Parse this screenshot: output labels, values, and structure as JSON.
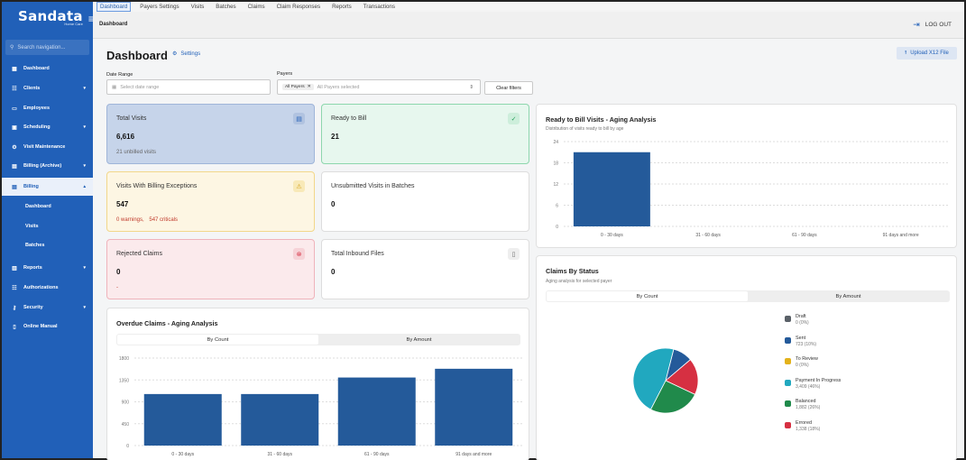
{
  "app": {
    "logo": "Sandata",
    "logo_sub": "Home Care"
  },
  "sidebar": {
    "search_placeholder": "Search navigation...",
    "items": [
      {
        "label": "Dashboard",
        "icon": "grid-icon",
        "chevron": ""
      },
      {
        "label": "Clients",
        "icon": "people-icon",
        "chevron": "▾"
      },
      {
        "label": "Employees",
        "icon": "id-card-icon",
        "chevron": ""
      },
      {
        "label": "Scheduling",
        "icon": "calendar-icon",
        "chevron": "▾"
      },
      {
        "label": "Visit Maintenance",
        "icon": "gear-icon",
        "chevron": ""
      },
      {
        "label": "Billing (Archive)",
        "icon": "billing-icon",
        "chevron": "▾"
      },
      {
        "label": "Billing",
        "icon": "billing-icon",
        "chevron": "▴"
      },
      {
        "label": "Reports",
        "icon": "report-icon",
        "chevron": "▾"
      },
      {
        "label": "Authorizations",
        "icon": "people-icon",
        "chevron": ""
      },
      {
        "label": "Security",
        "icon": "key-icon",
        "chevron": "▾"
      },
      {
        "label": "Online Manual",
        "icon": "book-icon",
        "chevron": ""
      }
    ],
    "billing_sub": [
      "Dashboard",
      "Visits",
      "Batches"
    ]
  },
  "topnav": [
    "Dashboard",
    "Payers Settings",
    "Visits",
    "Batches",
    "Claims",
    "Claim Responses",
    "Reports",
    "Transactions"
  ],
  "header": {
    "breadcrumb": "Dashboard",
    "logout": "LOG OUT"
  },
  "page": {
    "title": "Dashboard",
    "settings": "Settings",
    "upload": "Upload X12 File",
    "date_range_label": "Date Range",
    "date_placeholder": "Select date range",
    "payers_label": "Payers",
    "payers_chip": "All Payers",
    "payers_placeholder": "All Payers selected",
    "clear_filters": "Clear filters"
  },
  "cards": {
    "total_visits": {
      "title": "Total Visits",
      "value": "6,616",
      "sub": "21 unbilled visits"
    },
    "ready_to_bill": {
      "title": "Ready to Bill",
      "value": "21"
    },
    "billing_exceptions": {
      "title": "Visits With Billing Exceptions",
      "value": "547",
      "warnings": "0 warnings,",
      "criticals": "547 criticals"
    },
    "unsubmitted": {
      "title": "Unsubmitted Visits in Batches",
      "value": "0"
    },
    "rejected": {
      "title": "Rejected Claims",
      "value": "0",
      "sub": "-"
    },
    "inbound": {
      "title": "Total Inbound Files",
      "value": "0"
    }
  },
  "overdue": {
    "title": "Overdue Claims - Aging Analysis",
    "tabs": [
      "By Count",
      "By Amount"
    ]
  },
  "ready_aging": {
    "title": "Ready to Bill Visits - Aging Analysis",
    "subtitle": "Distribution of visits ready to bill by age"
  },
  "claims_status": {
    "title": "Claims By Status",
    "subtitle": "Aging analysis for selected payer",
    "tabs": [
      "By Count",
      "By Amount"
    ]
  },
  "chart_data": [
    {
      "type": "bar",
      "id": "ready_to_bill_aging",
      "categories": [
        "0 - 30 days",
        "31 - 60 days",
        "61 - 90 days",
        "91 days and more"
      ],
      "values": [
        21,
        0,
        0,
        0
      ],
      "yticks": [
        0,
        6,
        12,
        18,
        24
      ],
      "ylim": [
        0,
        24
      ],
      "color": "#245a9a"
    },
    {
      "type": "bar",
      "id": "overdue_claims_aging",
      "categories": [
        "0 - 30 days",
        "31 - 60 days",
        "61 - 90 days",
        "91 days and more"
      ],
      "values": [
        1060,
        1060,
        1400,
        1580
      ],
      "yticks": [
        0,
        450,
        900,
        1350,
        1800
      ],
      "ylim": [
        0,
        1800
      ],
      "color": "#245a9a"
    },
    {
      "type": "pie",
      "id": "claims_by_status",
      "slices": [
        {
          "label": "Draft",
          "value": 0,
          "text": "0 (0%)",
          "color": "#5a6168"
        },
        {
          "label": "Sent",
          "value": 723,
          "text": "723 (10%)",
          "color": "#245a9a"
        },
        {
          "label": "To Review",
          "value": 0,
          "text": "0 (0%)",
          "color": "#e3b21b"
        },
        {
          "label": "Payment In Progress",
          "value": 3409,
          "text": "3,409 (46%)",
          "color": "#21a8bf"
        },
        {
          "label": "Balanced",
          "value": 1882,
          "text": "1,882 (26%)",
          "color": "#208a4b"
        },
        {
          "label": "Errored",
          "value": 1338,
          "text": "1,338 (18%)",
          "color": "#d63042"
        }
      ]
    }
  ]
}
